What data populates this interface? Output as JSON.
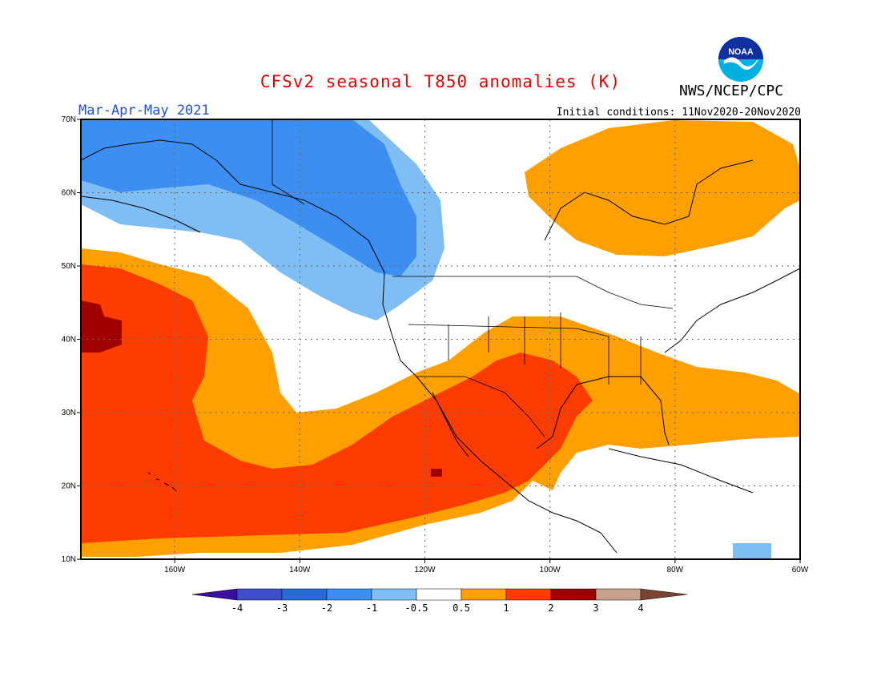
{
  "header": {
    "title": "CFSv2 seasonal T850 anomalies (K)",
    "season": "Mar-Apr-May 2021",
    "agency": "NWS/NCEP/CPC",
    "initial_conditions": "Initial conditions: 11Nov2020-20Nov2020",
    "logo_text": "NOAA"
  },
  "map": {
    "lon_range": [
      -175,
      -60
    ],
    "lat_range": [
      10,
      70
    ],
    "lon_ticks": [
      "160W",
      "140W",
      "120W",
      "100W",
      "80W",
      "60W"
    ],
    "lat_ticks": [
      "10N",
      "20N",
      "30N",
      "40N",
      "50N",
      "60N",
      "70N"
    ],
    "grid": "dotted",
    "regions": [
      {
        "level": "-2 to -1",
        "description": "Alaska, Yukon and British Columbia cold anomaly"
      },
      {
        "level": "-1 to -0.5",
        "description": "surrounding NW North America / Gulf of Alaska"
      },
      {
        "level": "0.5 to 1",
        "description": "eastern Canada / Hudson Bay warm anomaly"
      },
      {
        "level": "0.5 to 1",
        "description": "southern and eastern United States, western Atlantic"
      },
      {
        "level": "1 to 2",
        "description": "southwest US, Texas, Mexico and subtropical eastern Pacific"
      },
      {
        "level": "2 to 3",
        "description": "central North Pacific near 40N 170W"
      },
      {
        "level": "-1 to -0.5",
        "description": "small cold spot near Caribbean 11N 68W"
      }
    ]
  },
  "colorbar": {
    "labels": [
      "-4",
      "-3",
      "-2",
      "-1",
      "-0.5",
      "0.5",
      "1",
      "2",
      "3",
      "4"
    ],
    "colors": [
      "#3a0fa0",
      "#3d4ec8",
      "#2a6ad8",
      "#3c8ff0",
      "#7fbdf5",
      "#ffffff",
      "#ffa000",
      "#ff3c00",
      "#a00000",
      "#c8a090",
      "#7a4530"
    ]
  },
  "palette": {
    "cold2": "#3c8ff0",
    "cold1": "#7fbdf5",
    "warm1": "#ffa000",
    "warm2": "#ff3c00",
    "warm3": "#a00000"
  }
}
